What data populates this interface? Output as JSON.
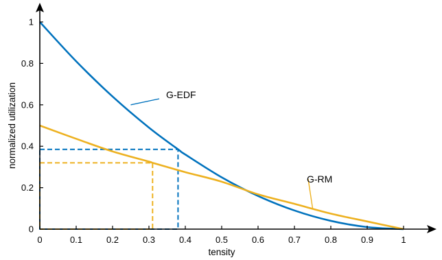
{
  "chart_data": {
    "type": "line",
    "xlabel": "tensity",
    "ylabel": "normalized utilization",
    "xlim": [
      0,
      1
    ],
    "ylim": [
      0,
      1
    ],
    "xticks": [
      0,
      0.1,
      0.2,
      0.3,
      0.4,
      0.5,
      0.6,
      0.7,
      0.8,
      0.9,
      1
    ],
    "xtick_labels": [
      "0",
      "0.1",
      "0.2",
      "0.3",
      "0.4",
      "0.5",
      "0.6",
      "0.7",
      "0.8",
      "0.9",
      "1"
    ],
    "yticks": [
      0,
      0.2,
      0.4,
      0.6,
      0.8,
      1
    ],
    "ytick_labels": [
      "0",
      "0.2",
      "0.4",
      "0.6",
      "0.8",
      "1"
    ],
    "grid": false,
    "legend": "none",
    "series": [
      {
        "name": "G-EDF",
        "color": "#0072BD",
        "x": [
          0,
          0.1,
          0.2,
          0.3,
          0.38,
          0.4,
          0.5,
          0.6,
          0.7,
          0.8,
          0.9,
          1
        ],
        "y": [
          1,
          0.81,
          0.64,
          0.49,
          0.385,
          0.36,
          0.25,
          0.16,
          0.09,
          0.04,
          0.01,
          0
        ]
      },
      {
        "name": "G-RM",
        "color": "#EDB120",
        "x": [
          0,
          0.1,
          0.2,
          0.3,
          0.31,
          0.4,
          0.5,
          0.6,
          0.7,
          0.8,
          0.9,
          1
        ],
        "y": [
          0.5,
          0.436,
          0.375,
          0.326,
          0.32,
          0.275,
          0.229,
          0.168,
          0.122,
          0.075,
          0.037,
          0
        ]
      }
    ],
    "annotations": [
      {
        "text": "G-EDF",
        "series": "G-EDF",
        "pointer_at": [
          0.25,
          0.6
        ]
      },
      {
        "text": "G-RM",
        "series": "G-RM",
        "pointer_at": [
          0.75,
          0.1
        ]
      }
    ],
    "reference_boxes": [
      {
        "series": "G-EDF",
        "color": "#0072BD",
        "x": 0.38,
        "y": 0.385
      },
      {
        "series": "G-RM",
        "color": "#EDB120",
        "x": 0.31,
        "y": 0.32
      }
    ]
  }
}
